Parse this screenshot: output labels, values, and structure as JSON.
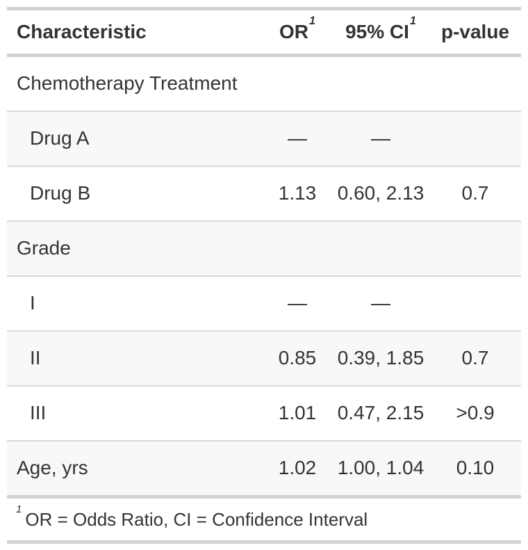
{
  "chart_data": {
    "type": "table",
    "description": "Logistic regression summary table (odds ratios with 95% confidence intervals and p-values)",
    "header": {
      "characteristic": {
        "label": "Characteristic",
        "mark": ""
      },
      "or": {
        "label": "OR",
        "mark": "1"
      },
      "ci": {
        "label": "95% CI",
        "mark": "1"
      },
      "p": {
        "label": "p-value",
        "mark": ""
      }
    },
    "rows": [
      {
        "label": "Chemotherapy Treatment",
        "level": "group",
        "or": "",
        "ci": "",
        "p": ""
      },
      {
        "label": "Drug A",
        "level": "sub",
        "or": "—",
        "ci": "—",
        "p": ""
      },
      {
        "label": "Drug B",
        "level": "sub",
        "or": "1.13",
        "ci": "0.60, 2.13",
        "p": "0.7"
      },
      {
        "label": "Grade",
        "level": "group",
        "or": "",
        "ci": "",
        "p": ""
      },
      {
        "label": "I",
        "level": "sub",
        "or": "—",
        "ci": "—",
        "p": ""
      },
      {
        "label": "II",
        "level": "sub",
        "or": "0.85",
        "ci": "0.39, 1.85",
        "p": "0.7"
      },
      {
        "label": "III",
        "level": "sub",
        "or": "1.01",
        "ci": "0.47, 2.15",
        "p": ">0.9"
      },
      {
        "label": "Age, yrs",
        "level": "group",
        "or": "1.02",
        "ci": "1.00, 1.04",
        "p": "0.10"
      }
    ],
    "footnote": {
      "mark": "1",
      "text": "OR = Odds Ratio, CI = Confidence Interval"
    },
    "layout": {
      "legend_position": "none",
      "grid": "horizontal-rules",
      "row_striping": true
    }
  },
  "colors": {
    "text": "#333333",
    "border_thick": "#D3D3D3",
    "border_thin": "#D9D9D9",
    "stripe": "#F8F8F8",
    "background": "#FFFFFF"
  }
}
